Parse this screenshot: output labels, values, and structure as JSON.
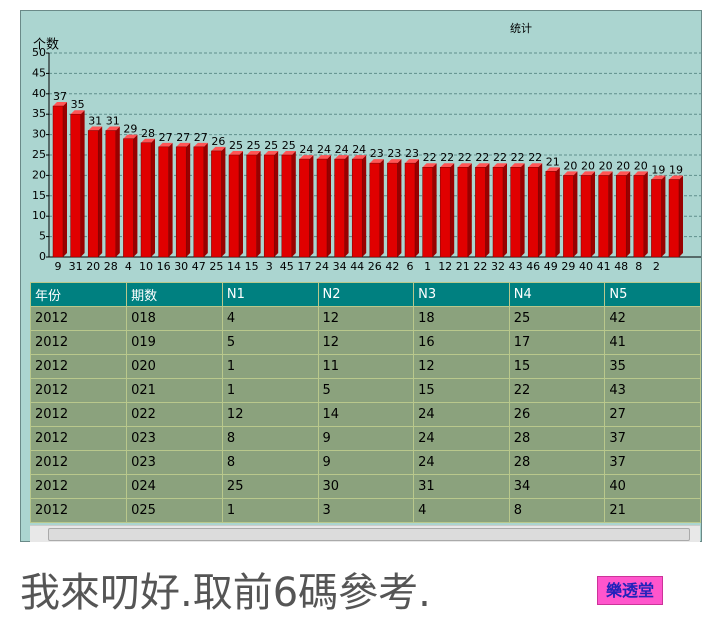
{
  "chart_data": {
    "type": "bar",
    "title": "统计",
    "y_label": "个数",
    "categories": [
      "9",
      "31",
      "20",
      "28",
      "4",
      "10",
      "16",
      "30",
      "47",
      "25",
      "14",
      "15",
      "3",
      "45",
      "17",
      "24",
      "34",
      "44",
      "26",
      "42",
      "6",
      "1",
      "12",
      "21",
      "22",
      "32",
      "43",
      "46",
      "49",
      "29",
      "40",
      "41",
      "48",
      "8",
      "2",
      null
    ],
    "values": [
      37,
      35,
      31,
      31,
      29,
      28,
      27,
      27,
      27,
      26,
      25,
      25,
      25,
      25,
      24,
      24,
      24,
      24,
      23,
      23,
      23,
      22,
      22,
      22,
      22,
      22,
      22,
      22,
      21,
      20,
      20,
      20,
      20,
      20,
      19,
      19
    ],
    "color": "#e00000",
    "ylim": [
      0,
      50
    ],
    "yticks": [
      0,
      5,
      10,
      15,
      20,
      25,
      30,
      35,
      40,
      45,
      50
    ],
    "grid": true
  },
  "table": {
    "columns": [
      "年份",
      "期数",
      "N1",
      "N2",
      "N3",
      "N4",
      "N5"
    ],
    "rows": [
      [
        "2012",
        "018",
        "4",
        "12",
        "18",
        "25",
        "42"
      ],
      [
        "2012",
        "019",
        "5",
        "12",
        "16",
        "17",
        "41"
      ],
      [
        "2012",
        "020",
        "1",
        "11",
        "12",
        "15",
        "35"
      ],
      [
        "2012",
        "021",
        "1",
        "5",
        "15",
        "22",
        "43"
      ],
      [
        "2012",
        "022",
        "12",
        "14",
        "24",
        "26",
        "27"
      ],
      [
        "2012",
        "023",
        "8",
        "9",
        "24",
        "28",
        "37"
      ],
      [
        "2012",
        "023",
        "8",
        "9",
        "24",
        "28",
        "37"
      ],
      [
        "2012",
        "024",
        "25",
        "30",
        "31",
        "34",
        "40"
      ],
      [
        "2012",
        "025",
        "1",
        "3",
        "4",
        "8",
        "21"
      ]
    ]
  },
  "footer": {
    "text": "我來叨好.取前6碼參考.",
    "badge": "樂透堂"
  }
}
